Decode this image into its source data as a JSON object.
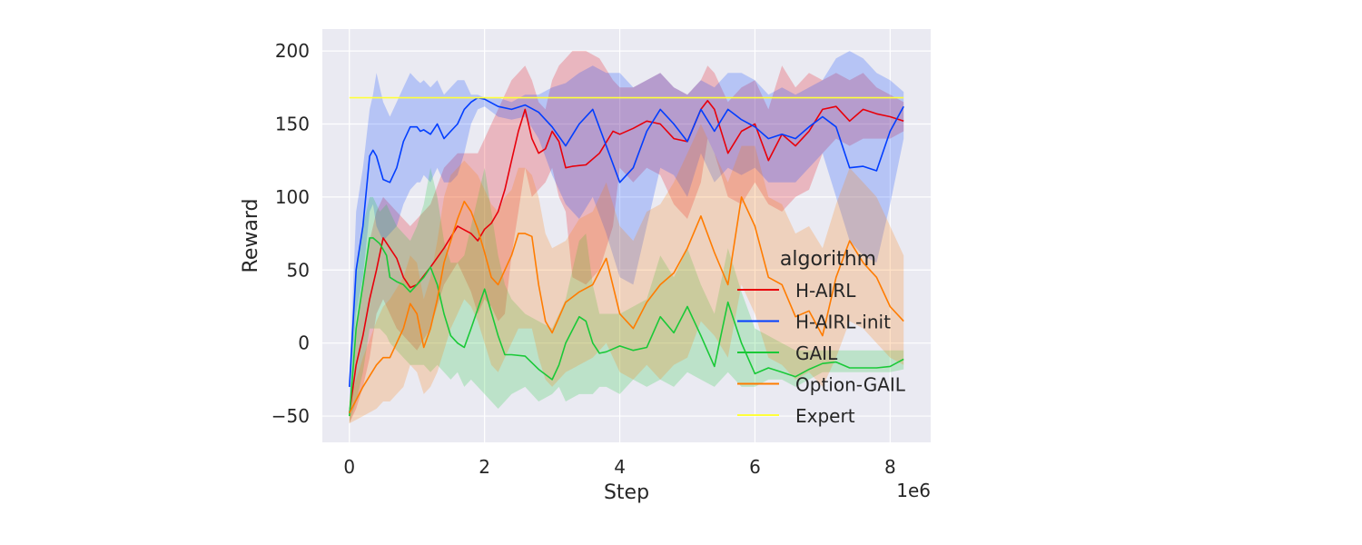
{
  "chart_data": {
    "type": "line",
    "title": "",
    "xlabel": "Step",
    "ylabel": "Reward",
    "x_offset_label": "1e6",
    "xlim": [
      -0.4,
      8.6
    ],
    "ylim": [
      -68,
      215
    ],
    "xticks": [
      0,
      2,
      4,
      6,
      8
    ],
    "xtick_labels": [
      "0",
      "2",
      "4",
      "6",
      "8"
    ],
    "yticks": [
      -50,
      0,
      50,
      100,
      150,
      200
    ],
    "ytick_labels": [
      "−50",
      "0",
      "50",
      "100",
      "150",
      "200"
    ],
    "grid": true,
    "background": "#eaeaf2",
    "legend": {
      "title": "algorithm",
      "position": "right",
      "entries": [
        "H-AIRL",
        "H-AIRL-init",
        "GAIL",
        "Option-GAIL",
        "Expert"
      ]
    },
    "series": [
      {
        "name": "H-AIRL",
        "color": "#e8000b",
        "x": [
          0,
          0.1,
          0.2,
          0.3,
          0.4,
          0.5,
          0.6,
          0.7,
          0.8,
          0.9,
          1.0,
          1.2,
          1.4,
          1.6,
          1.8,
          1.9,
          2.0,
          2.1,
          2.2,
          2.3,
          2.4,
          2.5,
          2.6,
          2.7,
          2.8,
          2.9,
          3.0,
          3.1,
          3.2,
          3.3,
          3.5,
          3.7,
          3.9,
          4.0,
          4.2,
          4.4,
          4.6,
          4.8,
          5.0,
          5.2,
          5.3,
          5.4,
          5.6,
          5.8,
          6.0,
          6.2,
          6.4,
          6.6,
          6.8,
          7.0,
          7.2,
          7.4,
          7.6,
          7.8,
          8.0,
          8.2
        ],
        "y": [
          -48,
          -15,
          5,
          30,
          50,
          72,
          65,
          58,
          45,
          38,
          40,
          52,
          65,
          80,
          75,
          70,
          78,
          82,
          90,
          105,
          125,
          145,
          160,
          140,
          130,
          133,
          145,
          138,
          120,
          121,
          122,
          130,
          145,
          143,
          147,
          152,
          150,
          140,
          138,
          160,
          166,
          160,
          130,
          145,
          150,
          125,
          143,
          135,
          145,
          160,
          162,
          152,
          160,
          157,
          155,
          152
        ],
        "lower": [
          -55,
          -45,
          -30,
          -10,
          20,
          30,
          20,
          10,
          5,
          0,
          -5,
          10,
          40,
          55,
          35,
          20,
          30,
          25,
          15,
          20,
          60,
          90,
          120,
          100,
          105,
          110,
          120,
          100,
          90,
          45,
          40,
          50,
          80,
          120,
          110,
          120,
          115,
          95,
          85,
          110,
          140,
          130,
          100,
          95,
          110,
          95,
          90,
          100,
          105,
          130,
          140,
          135,
          140,
          140,
          140,
          145
        ],
        "upper": [
          -40,
          10,
          40,
          70,
          90,
          100,
          95,
          90,
          85,
          80,
          85,
          95,
          120,
          130,
          130,
          130,
          140,
          150,
          160,
          170,
          180,
          185,
          190,
          180,
          165,
          160,
          180,
          190,
          195,
          200,
          200,
          195,
          180,
          175,
          175,
          180,
          185,
          175,
          170,
          180,
          190,
          185,
          165,
          175,
          180,
          160,
          190,
          175,
          185,
          180,
          185,
          180,
          185,
          175,
          170,
          165
        ]
      },
      {
        "name": "H-AIRL-init",
        "color": "#023eff",
        "x": [
          0,
          0.1,
          0.2,
          0.3,
          0.35,
          0.4,
          0.5,
          0.6,
          0.7,
          0.8,
          0.9,
          1.0,
          1.05,
          1.1,
          1.2,
          1.3,
          1.4,
          1.5,
          1.6,
          1.7,
          1.8,
          1.9,
          2.0,
          2.2,
          2.4,
          2.6,
          2.8,
          3.0,
          3.2,
          3.4,
          3.6,
          3.8,
          4.0,
          4.2,
          4.4,
          4.6,
          4.8,
          5.0,
          5.2,
          5.4,
          5.6,
          5.8,
          6.0,
          6.2,
          6.4,
          6.6,
          6.8,
          7.0,
          7.2,
          7.4,
          7.6,
          7.8,
          8.0,
          8.2
        ],
        "y": [
          -30,
          50,
          80,
          128,
          132,
          128,
          112,
          110,
          120,
          138,
          148,
          148,
          145,
          146,
          143,
          150,
          140,
          145,
          150,
          160,
          165,
          168,
          167,
          162,
          160,
          163,
          158,
          148,
          135,
          150,
          160,
          135,
          110,
          120,
          145,
          160,
          150,
          138,
          160,
          145,
          160,
          153,
          148,
          140,
          143,
          140,
          148,
          155,
          148,
          120,
          121,
          118,
          145,
          162
        ],
        "lower": [
          -40,
          20,
          45,
          90,
          95,
          80,
          70,
          75,
          80,
          95,
          105,
          110,
          110,
          115,
          110,
          120,
          110,
          110,
          115,
          130,
          150,
          160,
          162,
          155,
          153,
          155,
          140,
          115,
          95,
          85,
          100,
          75,
          45,
          40,
          80,
          120,
          115,
          100,
          130,
          110,
          120,
          115,
          120,
          110,
          110,
          110,
          120,
          130,
          100,
          70,
          60,
          55,
          95,
          140
        ],
        "upper": [
          -25,
          90,
          120,
          160,
          170,
          185,
          165,
          155,
          165,
          175,
          185,
          180,
          178,
          180,
          175,
          180,
          170,
          175,
          180,
          180,
          170,
          170,
          168,
          168,
          165,
          170,
          170,
          175,
          178,
          185,
          190,
          185,
          185,
          175,
          180,
          185,
          175,
          170,
          180,
          175,
          185,
          185,
          180,
          170,
          175,
          170,
          175,
          180,
          195,
          200,
          195,
          185,
          180,
          172
        ]
      },
      {
        "name": "GAIL",
        "color": "#1ac938",
        "x": [
          0,
          0.1,
          0.2,
          0.3,
          0.35,
          0.45,
          0.55,
          0.6,
          0.7,
          0.8,
          0.9,
          1.0,
          1.1,
          1.2,
          1.3,
          1.4,
          1.5,
          1.6,
          1.7,
          1.8,
          2.0,
          2.2,
          2.3,
          2.4,
          2.6,
          2.8,
          3.0,
          3.1,
          3.2,
          3.4,
          3.5,
          3.6,
          3.7,
          3.8,
          4.0,
          4.2,
          4.4,
          4.6,
          4.8,
          5.0,
          5.2,
          5.4,
          5.6,
          5.8,
          6.0,
          6.2,
          6.4,
          6.6,
          6.8,
          7.0,
          7.2,
          7.4,
          7.6,
          7.8,
          8.0,
          8.2
        ],
        "y": [
          -50,
          10,
          40,
          72,
          72,
          68,
          60,
          45,
          42,
          40,
          35,
          40,
          45,
          52,
          40,
          20,
          5,
          0,
          -3,
          10,
          37,
          5,
          -8,
          -8,
          -9,
          -18,
          -25,
          -15,
          0,
          18,
          15,
          0,
          -7,
          -6,
          -2,
          -5,
          -3,
          18,
          7,
          25,
          5,
          -16,
          28,
          0,
          -21,
          -17,
          -20,
          -23,
          -18,
          -14,
          -13,
          -17,
          -17,
          -17,
          -16,
          -11
        ],
        "lower": [
          -55,
          -40,
          -20,
          10,
          10,
          10,
          5,
          0,
          -5,
          -10,
          -15,
          -15,
          -15,
          -20,
          -15,
          -20,
          -25,
          -20,
          -30,
          -25,
          -35,
          -45,
          -40,
          -35,
          -30,
          -40,
          -35,
          -30,
          -40,
          -35,
          -35,
          -35,
          -30,
          -30,
          -35,
          -25,
          -30,
          -25,
          -30,
          -20,
          -25,
          -30,
          -20,
          -30,
          -30,
          -25,
          -25,
          -30,
          -25,
          -20,
          -20,
          -20,
          -20,
          -20,
          -20,
          -18
        ],
        "upper": [
          -45,
          50,
          80,
          100,
          100,
          90,
          95,
          90,
          80,
          75,
          70,
          80,
          95,
          120,
          100,
          70,
          55,
          55,
          60,
          80,
          120,
          60,
          40,
          30,
          20,
          15,
          10,
          20,
          30,
          70,
          75,
          40,
          20,
          20,
          20,
          25,
          30,
          60,
          45,
          65,
          40,
          20,
          65,
          35,
          10,
          5,
          0,
          -5,
          -5,
          -5,
          -5,
          -5,
          -5,
          -5,
          -5,
          -5
        ]
      },
      {
        "name": "Option-GAIL",
        "color": "#ff7c00",
        "x": [
          0,
          0.2,
          0.4,
          0.5,
          0.6,
          0.8,
          0.9,
          1.0,
          1.1,
          1.2,
          1.3,
          1.4,
          1.5,
          1.6,
          1.7,
          1.8,
          1.9,
          2.0,
          2.1,
          2.2,
          2.3,
          2.4,
          2.5,
          2.6,
          2.7,
          2.8,
          2.9,
          3.0,
          3.2,
          3.4,
          3.6,
          3.8,
          4.0,
          4.2,
          4.4,
          4.6,
          4.8,
          5.0,
          5.2,
          5.4,
          5.6,
          5.8,
          6.0,
          6.2,
          6.4,
          6.6,
          6.8,
          7.0,
          7.2,
          7.4,
          7.6,
          7.8,
          8.0,
          8.2
        ],
        "y": [
          -48,
          -30,
          -15,
          -10,
          -10,
          10,
          27,
          20,
          -3,
          10,
          30,
          55,
          70,
          85,
          97,
          90,
          78,
          62,
          45,
          40,
          50,
          60,
          75,
          75,
          73,
          40,
          15,
          7,
          28,
          35,
          40,
          58,
          20,
          10,
          28,
          40,
          48,
          65,
          87,
          62,
          40,
          100,
          80,
          45,
          40,
          18,
          22,
          5,
          45,
          70,
          55,
          45,
          25,
          15
        ],
        "lower": [
          -55,
          -50,
          -45,
          -40,
          -40,
          -30,
          -15,
          -20,
          -35,
          -30,
          -20,
          -5,
          10,
          20,
          30,
          25,
          15,
          0,
          -15,
          -20,
          -10,
          0,
          10,
          10,
          10,
          -10,
          -25,
          -30,
          -20,
          -15,
          -10,
          0,
          -20,
          -25,
          -15,
          -25,
          -15,
          -10,
          15,
          5,
          -10,
          40,
          20,
          -10,
          -15,
          -25,
          -20,
          -30,
          -10,
          15,
          10,
          0,
          -10,
          -15
        ],
        "upper": [
          -40,
          -10,
          15,
          25,
          30,
          45,
          60,
          55,
          30,
          45,
          70,
          100,
          115,
          120,
          125,
          120,
          115,
          105,
          95,
          90,
          100,
          105,
          120,
          120,
          115,
          100,
          75,
          65,
          70,
          85,
          90,
          110,
          80,
          70,
          90,
          95,
          110,
          130,
          150,
          130,
          110,
          135,
          135,
          100,
          95,
          75,
          80,
          65,
          95,
          120,
          110,
          100,
          80,
          60
        ]
      },
      {
        "name": "Expert",
        "color": "#ffff3b",
        "x": [
          0,
          8.2
        ],
        "y": [
          168,
          168
        ]
      }
    ]
  }
}
